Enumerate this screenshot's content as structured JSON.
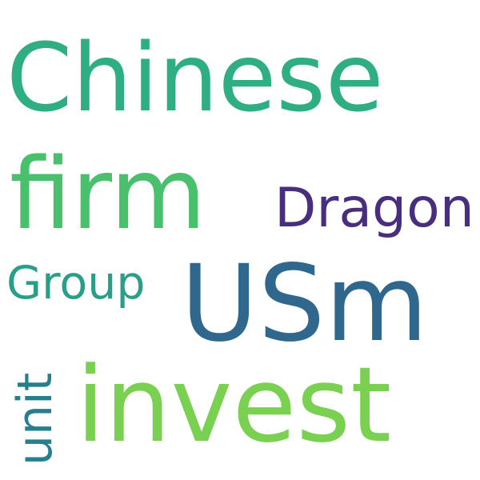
{
  "words": [
    {
      "text": "Chinese",
      "color": "#2fae84"
    },
    {
      "text": "firm",
      "color": "#48c06c"
    },
    {
      "text": "Dragon",
      "color": "#472f7d"
    },
    {
      "text": "Group",
      "color": "#2a9f88"
    },
    {
      "text": "USm",
      "color": "#30678d"
    },
    {
      "text": "invest",
      "color": "#7ad151"
    },
    {
      "text": "unit",
      "color": "#277f8e"
    }
  ]
}
